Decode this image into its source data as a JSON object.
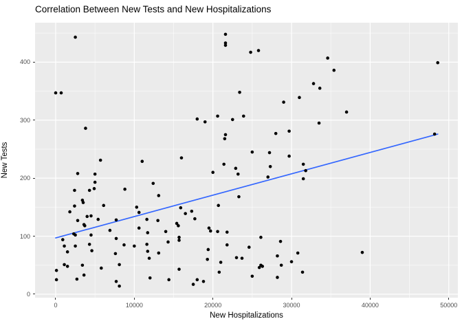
{
  "title": "Correlation Between New Tests and New Hospitalizations",
  "chart_data": {
    "type": "scatter",
    "title": "Correlation Between New Tests and New Hospitalizations",
    "xlabel": "New Hospitalizations",
    "ylabel": "New Tests",
    "xlim": [
      -2623,
      51160
    ],
    "ylim": [
      -6,
      468
    ],
    "xticks": [
      0,
      10000,
      20000,
      30000,
      40000,
      50000
    ],
    "xtick_labels": [
      "0",
      "10000",
      "20000",
      "30000",
      "40000",
      "50000"
    ],
    "yticks": [
      0,
      100,
      200,
      300,
      400
    ],
    "ytick_labels": [
      "0",
      "100",
      "200",
      "300",
      "400"
    ],
    "x_minor_ticks": [
      5000,
      15000,
      25000,
      35000,
      45000
    ],
    "y_minor_ticks": [
      50,
      150,
      250,
      350,
      450
    ],
    "grid": "major-and-minor, white on gray panel",
    "legend": "none",
    "panel_bg": "#EBEBEB",
    "grid_color": "#FFFFFF",
    "point_color": "#000000",
    "point_radius": 2.3,
    "trend_line": {
      "type": "linear",
      "x1": 0,
      "y1": 97,
      "x2": 48600,
      "y2": 276,
      "color": "#3366FF",
      "width": 1.7
    },
    "points": [
      [
        2500,
        443
      ],
      [
        21600,
        448
      ],
      [
        21600,
        433
      ],
      [
        21600,
        429
      ],
      [
        24800,
        417
      ],
      [
        25800,
        420
      ],
      [
        34600,
        407
      ],
      [
        48600,
        399
      ],
      [
        35400,
        386
      ],
      [
        32800,
        363
      ],
      [
        33600,
        355
      ],
      [
        0,
        347
      ],
      [
        700,
        347
      ],
      [
        23400,
        348
      ],
      [
        31000,
        339
      ],
      [
        29000,
        331
      ],
      [
        37000,
        314
      ],
      [
        18000,
        302
      ],
      [
        19000,
        297
      ],
      [
        20600,
        307
      ],
      [
        22500,
        301
      ],
      [
        23900,
        307
      ],
      [
        3800,
        286
      ],
      [
        33500,
        295
      ],
      [
        21600,
        275
      ],
      [
        21500,
        268
      ],
      [
        28000,
        277
      ],
      [
        29700,
        281
      ],
      [
        48200,
        276
      ],
      [
        25000,
        245
      ],
      [
        27200,
        244
      ],
      [
        29700,
        238
      ],
      [
        16000,
        235
      ],
      [
        5700,
        231
      ],
      [
        11000,
        229
      ],
      [
        21400,
        224
      ],
      [
        31500,
        224
      ],
      [
        22900,
        217
      ],
      [
        27300,
        220
      ],
      [
        31800,
        213
      ],
      [
        20000,
        210
      ],
      [
        23200,
        207
      ],
      [
        27000,
        202
      ],
      [
        31500,
        199
      ],
      [
        2800,
        208
      ],
      [
        5000,
        207
      ],
      [
        5000,
        193
      ],
      [
        12400,
        191
      ],
      [
        4900,
        182
      ],
      [
        8800,
        181
      ],
      [
        2400,
        179
      ],
      [
        4300,
        179
      ],
      [
        13100,
        170
      ],
      [
        23300,
        168
      ],
      [
        3400,
        162
      ],
      [
        3500,
        158
      ],
      [
        20700,
        153
      ],
      [
        6100,
        153
      ],
      [
        2400,
        152
      ],
      [
        10300,
        150
      ],
      [
        15900,
        149
      ],
      [
        10600,
        141
      ],
      [
        1800,
        142
      ],
      [
        17300,
        143
      ],
      [
        16500,
        139
      ],
      [
        4500,
        135
      ],
      [
        4000,
        134
      ],
      [
        17700,
        130
      ],
      [
        11600,
        129
      ],
      [
        5400,
        129
      ],
      [
        7700,
        128
      ],
      [
        2800,
        127
      ],
      [
        13000,
        127
      ],
      [
        15400,
        122
      ],
      [
        15600,
        118
      ],
      [
        3600,
        120
      ],
      [
        3700,
        118
      ],
      [
        19500,
        114
      ],
      [
        10600,
        114
      ],
      [
        19700,
        109
      ],
      [
        20600,
        108
      ],
      [
        21800,
        107
      ],
      [
        11700,
        106
      ],
      [
        6900,
        110
      ],
      [
        2300,
        104
      ],
      [
        2500,
        102
      ],
      [
        4500,
        102
      ],
      [
        14000,
        108
      ],
      [
        14300,
        90
      ],
      [
        15700,
        98
      ],
      [
        15700,
        93
      ],
      [
        26100,
        98
      ],
      [
        28600,
        91
      ],
      [
        7700,
        96
      ],
      [
        900,
        94
      ],
      [
        21800,
        85
      ],
      [
        24600,
        81
      ],
      [
        1100,
        83
      ],
      [
        2500,
        83
      ],
      [
        4300,
        86
      ],
      [
        8700,
        85
      ],
      [
        10000,
        83
      ],
      [
        11600,
        86
      ],
      [
        19400,
        77
      ],
      [
        1500,
        73
      ],
      [
        4600,
        75
      ],
      [
        7600,
        70
      ],
      [
        11700,
        74
      ],
      [
        13100,
        71
      ],
      [
        30800,
        71
      ],
      [
        39000,
        72
      ],
      [
        28200,
        66
      ],
      [
        11900,
        62
      ],
      [
        19300,
        60
      ],
      [
        23000,
        63
      ],
      [
        23700,
        62
      ],
      [
        21000,
        55
      ],
      [
        30000,
        56
      ],
      [
        26100,
        50
      ],
      [
        26300,
        48
      ],
      [
        25900,
        46
      ],
      [
        28700,
        50
      ],
      [
        1100,
        51
      ],
      [
        1500,
        48
      ],
      [
        3400,
        50
      ],
      [
        8100,
        51
      ],
      [
        100,
        41
      ],
      [
        5800,
        45
      ],
      [
        15700,
        43
      ],
      [
        20800,
        38
      ],
      [
        31400,
        38
      ],
      [
        100,
        25
      ],
      [
        2700,
        26
      ],
      [
        3600,
        33
      ],
      [
        12000,
        28
      ],
      [
        14400,
        25
      ],
      [
        18000,
        25
      ],
      [
        18800,
        22
      ],
      [
        7700,
        22
      ],
      [
        8100,
        14
      ],
      [
        17500,
        17
      ],
      [
        25000,
        31
      ],
      [
        28200,
        29
      ]
    ]
  }
}
